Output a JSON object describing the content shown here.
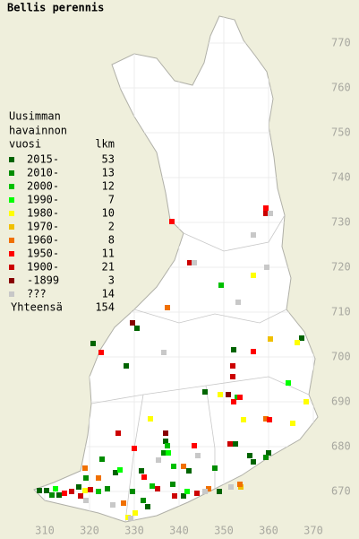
{
  "title": "Bellis perennis",
  "legend": {
    "heading": [
      "Uusimman",
      "havainnon",
      "vuosi"
    ],
    "count_heading": "lkm",
    "entries": [
      {
        "label": "2015-",
        "count": 53,
        "color": "#006400",
        "points": [
          [
            308.8,
            670.2
          ],
          [
            310.4,
            670.2
          ],
          [
            313.2,
            669.2
          ],
          [
            317.6,
            671.0
          ],
          [
            325.8,
            674.2
          ],
          [
            330.6,
            706.4
          ],
          [
            337,
            681.2
          ],
          [
            341,
            669
          ],
          [
            342.2,
            674.6
          ],
          [
            355.8,
            678
          ],
          [
            356.6,
            676.6
          ],
          [
            360,
            678.6
          ],
          [
            367.4,
            704.2
          ],
          [
            331.6,
            674.6
          ],
          [
            333,
            666.6
          ],
          [
            349,
            670
          ],
          [
            345.8,
            692.2
          ],
          [
            352.2,
            701.6
          ],
          [
            328.2,
            698
          ],
          [
            320.8,
            703
          ],
          [
            352.6,
            680.6
          ]
        ]
      },
      {
        "label": "2010-",
        "count": 13,
        "color": "#008c00",
        "points": [
          [
            311.6,
            669.2
          ],
          [
            324,
            670.6
          ],
          [
            329.6,
            670
          ],
          [
            338.6,
            671.6
          ],
          [
            348,
            675.2
          ],
          [
            359.4,
            677.6
          ],
          [
            332,
            668
          ],
          [
            336.6,
            678.6
          ],
          [
            319.2,
            673
          ],
          [
            322.8,
            677.2
          ]
        ]
      },
      {
        "label": "2000-",
        "count": 12,
        "color": "#00c000",
        "points": [
          [
            337.4,
            680.2
          ],
          [
            349.4,
            716
          ],
          [
            338.8,
            675.6
          ],
          [
            334,
            671.2
          ],
          [
            353,
            691
          ],
          [
            322,
            670
          ]
        ]
      },
      {
        "label": "1990-",
        "count": 7,
        "color": "#00ff00",
        "points": [
          [
            364.4,
            694.2
          ],
          [
            337.6,
            678.6
          ],
          [
            326.8,
            674.8
          ],
          [
            341.8,
            670
          ],
          [
            312.4,
            670.6
          ]
        ]
      },
      {
        "label": "1980-",
        "count": 10,
        "color": "#ffff00",
        "points": [
          [
            356.6,
            718.2
          ],
          [
            366.4,
            703.2
          ],
          [
            368.4,
            690
          ],
          [
            365.4,
            685.2
          ],
          [
            354.4,
            686
          ],
          [
            333.6,
            686.2
          ],
          [
            328.6,
            664.2
          ],
          [
            330.2,
            665.2
          ],
          [
            349.2,
            691.6
          ],
          [
            319,
            670.2
          ]
        ]
      },
      {
        "label": "1970-",
        "count": 2,
        "color": "#f0c000",
        "points": [
          [
            360.4,
            704
          ],
          [
            353.8,
            671
          ]
        ]
      },
      {
        "label": "1960-",
        "count": 8,
        "color": "#f07000",
        "points": [
          [
            337.4,
            711
          ],
          [
            359.4,
            686.2
          ],
          [
            319,
            675.2
          ],
          [
            341,
            675.6
          ],
          [
            322,
            673
          ],
          [
            353.6,
            671.6
          ],
          [
            346.6,
            670.6
          ],
          [
            327.6,
            667.4
          ]
        ]
      },
      {
        "label": "1950-",
        "count": 11,
        "color": "#ff0000",
        "points": [
          [
            338.4,
            730.2
          ],
          [
            359.4,
            733.2
          ],
          [
            322.6,
            701
          ],
          [
            356.6,
            701.2
          ],
          [
            352.2,
            690
          ],
          [
            353.6,
            691
          ],
          [
            360.2,
            686
          ],
          [
            330,
            679.6
          ],
          [
            332.2,
            673.2
          ],
          [
            343.4,
            680.2
          ],
          [
            314.4,
            669.6
          ]
        ]
      },
      {
        "label": "1900-",
        "count": 21,
        "color": "#cc0000",
        "points": [
          [
            359.4,
            732
          ],
          [
            342.4,
            721
          ],
          [
            352,
            698
          ],
          [
            352,
            695.6
          ],
          [
            326.4,
            683
          ],
          [
            316,
            670
          ],
          [
            318,
            669
          ],
          [
            320.2,
            670.4
          ],
          [
            339,
            669
          ],
          [
            351.4,
            680.6
          ],
          [
            335.2,
            670.6
          ],
          [
            344,
            669.6
          ]
        ]
      },
      {
        "label": "-1899",
        "count": 3,
        "color": "#880000",
        "points": [
          [
            351,
            691.6
          ],
          [
            337,
            683
          ],
          [
            329.6,
            707.6
          ]
        ]
      },
      {
        "label": "???",
        "count": 14,
        "color": "#c8c8c8",
        "points": [
          [
            343.4,
            721
          ],
          [
            360.4,
            732
          ],
          [
            356.6,
            727.2
          ],
          [
            359.6,
            720
          ],
          [
            353.2,
            712.2
          ],
          [
            336.6,
            701
          ],
          [
            335.4,
            677
          ],
          [
            319.2,
            668
          ],
          [
            325.2,
            667
          ],
          [
            345.8,
            670
          ],
          [
            351.6,
            671
          ],
          [
            329.2,
            664
          ],
          [
            344.2,
            678
          ]
        ]
      }
    ],
    "total_label": "Yhteensä",
    "total": 154
  },
  "xticks": [
    310,
    320,
    330,
    340,
    350,
    360,
    370
  ],
  "yticks": [
    770,
    760,
    750,
    740,
    730,
    720,
    710,
    700,
    690,
    680,
    670
  ]
}
